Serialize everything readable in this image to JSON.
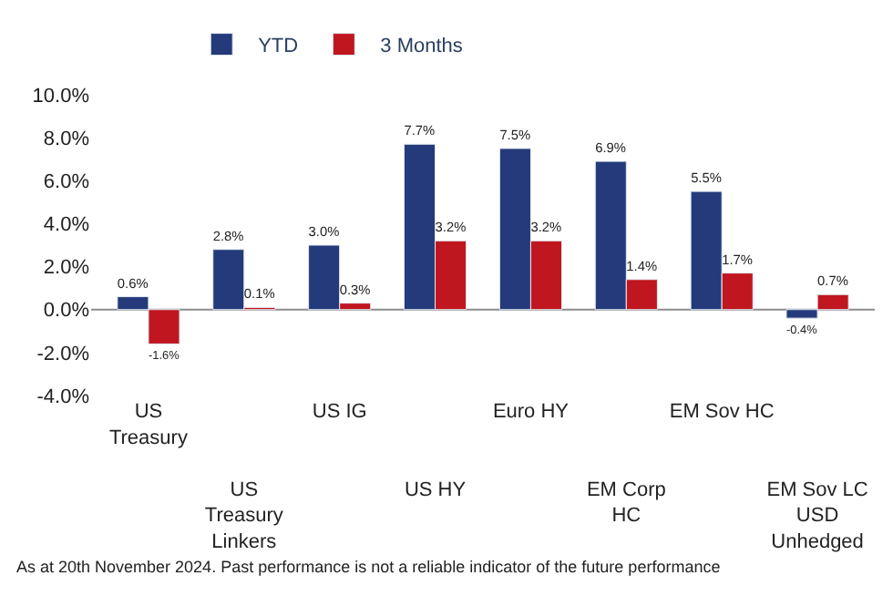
{
  "chart_data": {
    "type": "bar",
    "categories": [
      "US\nTreasury",
      "US\nTreasury\nLinkers",
      "US IG",
      "US HY",
      "Euro HY",
      "EM Corp\nHC",
      "EM Sov HC",
      "EM Sov LC\nUSD\nUnhedged"
    ],
    "series": [
      {
        "name": "YTD",
        "color": "#253a7a",
        "values": [
          0.6,
          2.8,
          3.0,
          7.7,
          7.5,
          6.9,
          5.5,
          -0.4
        ],
        "value_labels": [
          "0.6%",
          "2.8%",
          "3.0%",
          "7.7%",
          "7.5%",
          "6.9%",
          "5.5%",
          "-0.4%"
        ]
      },
      {
        "name": "3 Months",
        "color": "#c0161f",
        "values": [
          -1.6,
          0.1,
          0.3,
          3.2,
          3.2,
          1.4,
          1.7,
          0.7
        ],
        "value_labels": [
          "-1.6%",
          "0.1%",
          "0.3%",
          "3.2%",
          "3.2%",
          "1.4%",
          "1.7%",
          "0.7%"
        ]
      }
    ],
    "ylim": [
      -4,
      10
    ],
    "ref_lines": [
      {
        "axis": "y",
        "value": 0,
        "color": "#8c8c8c"
      }
    ],
    "yticks": [
      {
        "value": -4,
        "label": "-4.0%"
      },
      {
        "value": -2,
        "label": "-2.0%"
      },
      {
        "value": 0,
        "label": "0.0%"
      },
      {
        "value": 2,
        "label": "2.0%"
      },
      {
        "value": 4,
        "label": "4.0%"
      },
      {
        "value": 6,
        "label": "6.0%"
      },
      {
        "value": 8,
        "label": "8.0%"
      },
      {
        "value": 10,
        "label": "10.0%"
      }
    ],
    "grid": false,
    "legend": "top",
    "annotations": [
      "As at 20th November 2024. Past performance is not a reliable indicator of the future performance"
    ]
  }
}
